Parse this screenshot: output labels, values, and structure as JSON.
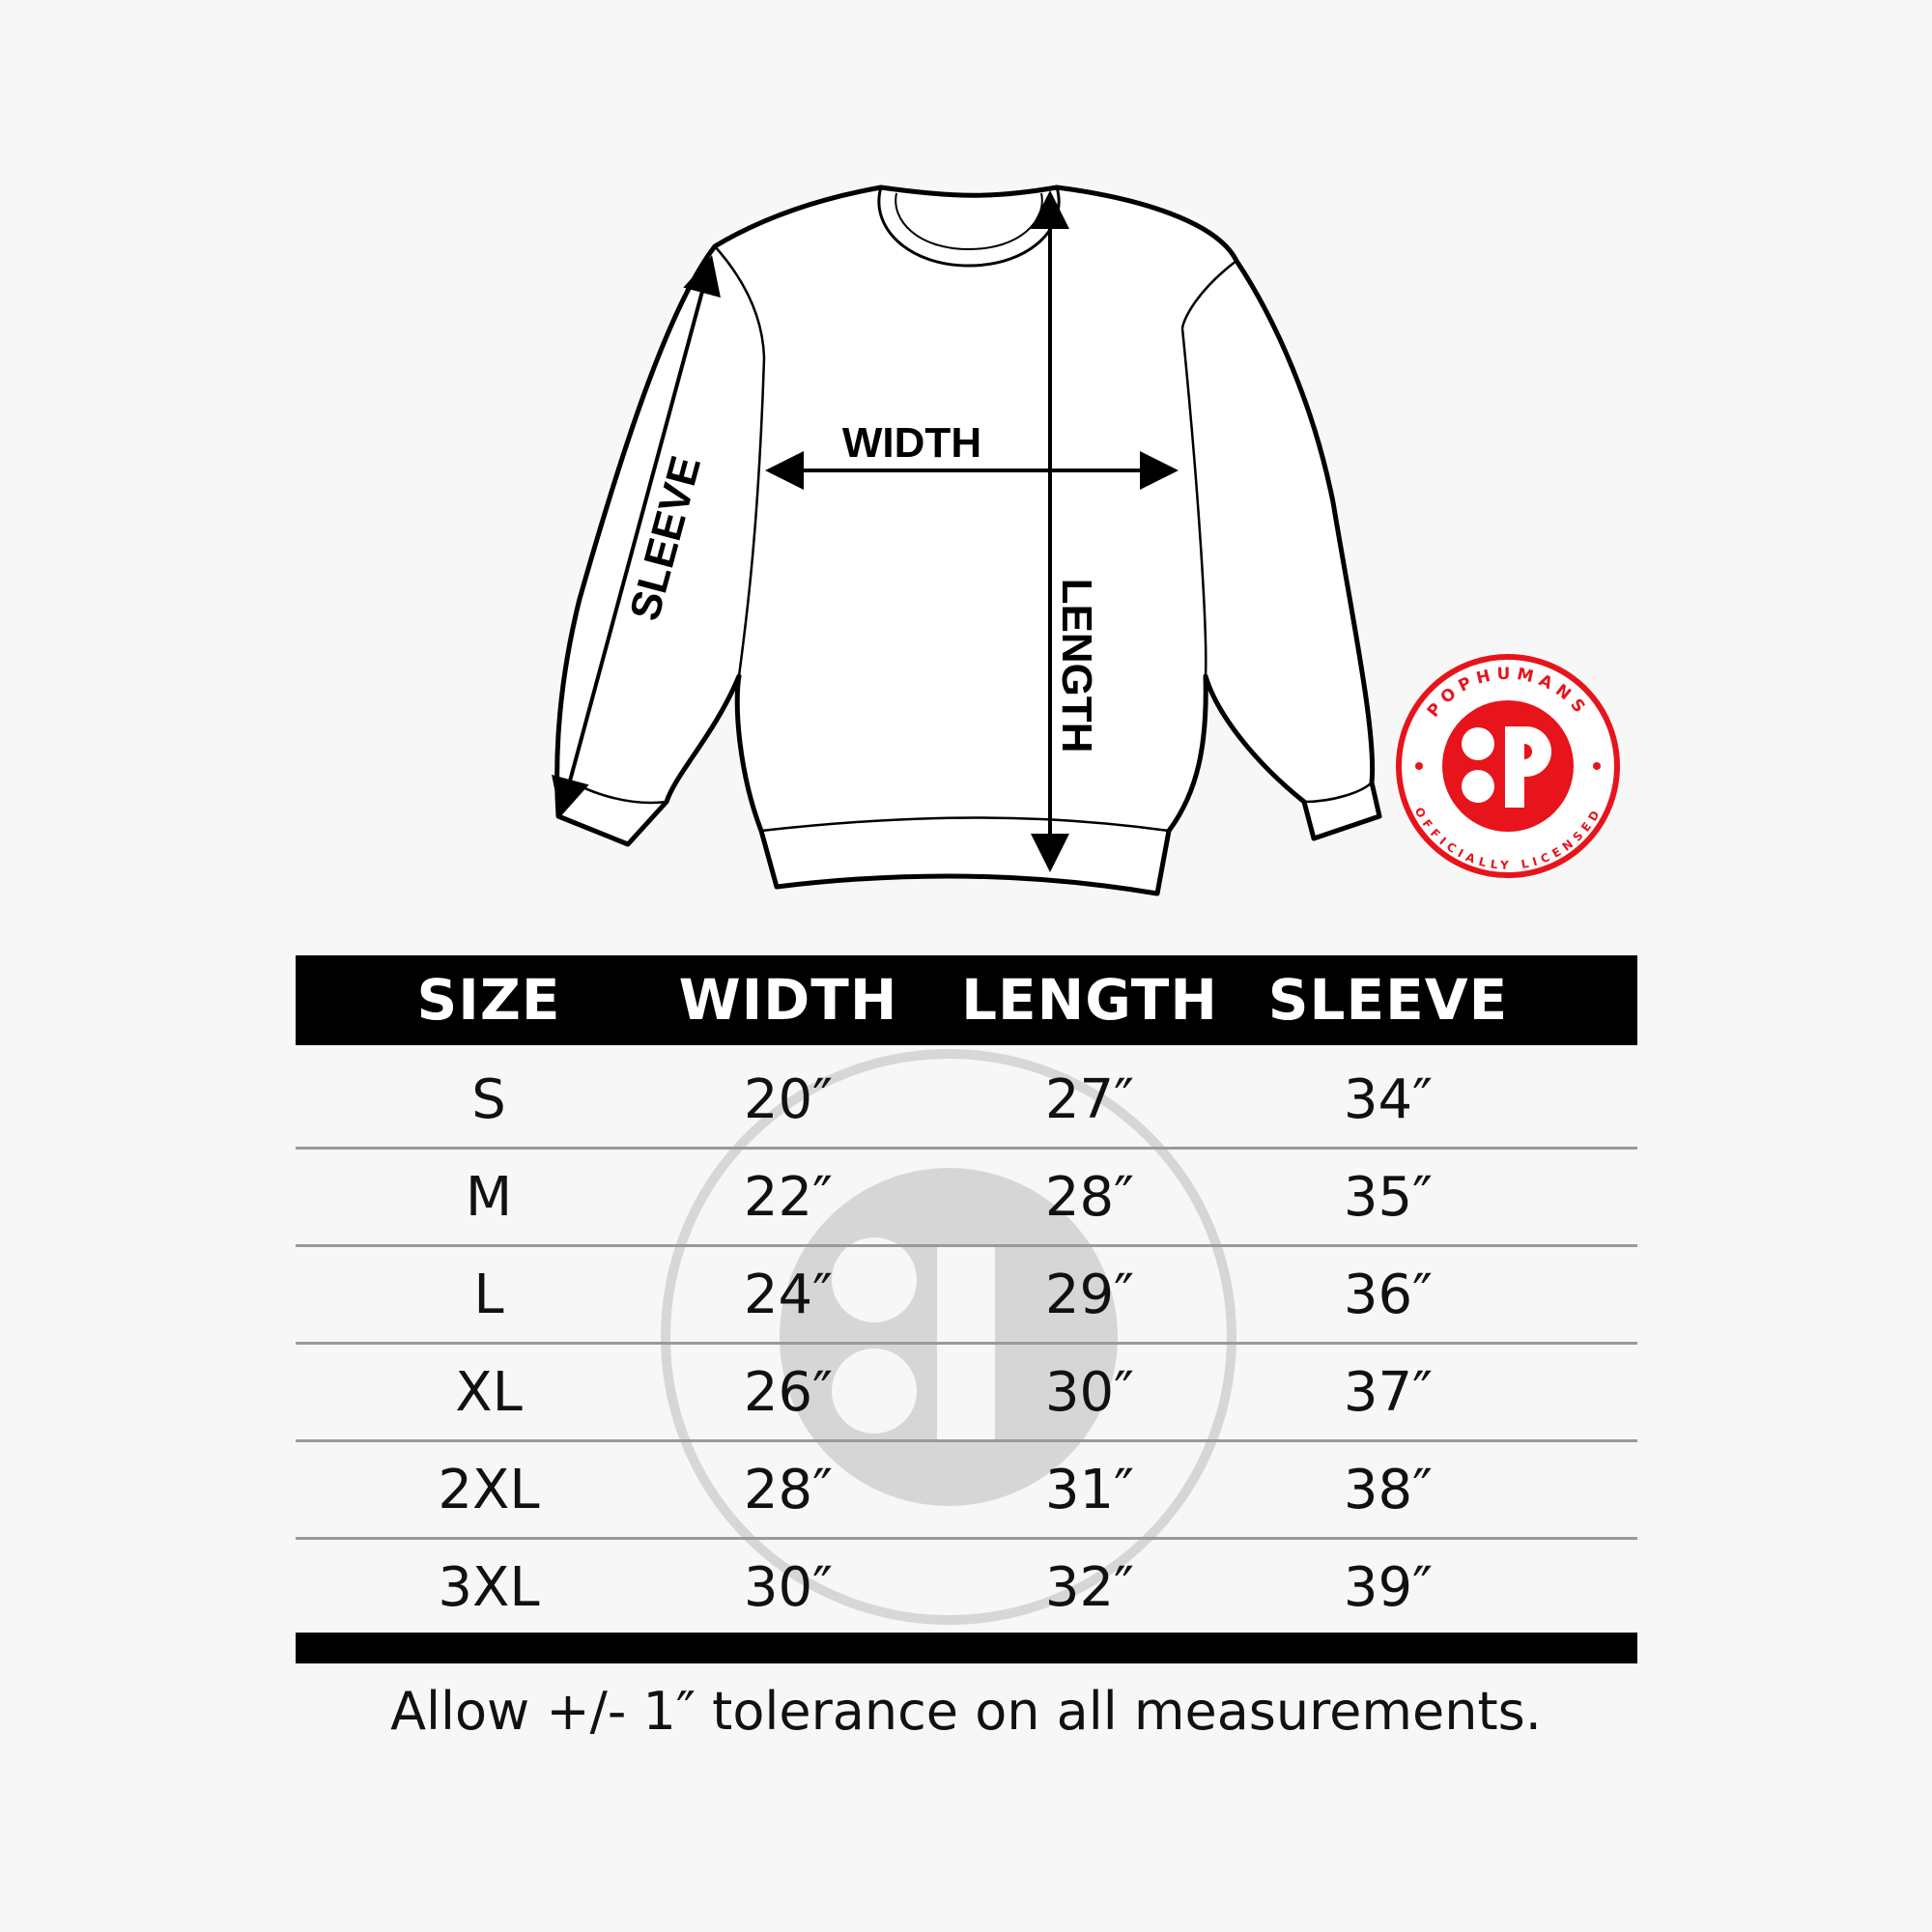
{
  "diagram": {
    "labels": {
      "width": "WIDTH",
      "length": "LENGTH",
      "sleeve": "SLEEVE"
    }
  },
  "logo": {
    "top_text": "POPHUMANS",
    "bottom_text": "OFFICIALLY LICENSED",
    "color": "#e8141b"
  },
  "table": {
    "headers": [
      "SIZE",
      "WIDTH",
      "LENGTH",
      "SLEEVE"
    ],
    "rows": [
      [
        "S",
        "20″",
        "27″",
        "34″"
      ],
      [
        "M",
        "22″",
        "28″",
        "35″"
      ],
      [
        "L",
        "24″",
        "29″",
        "36″"
      ],
      [
        "XL",
        "26″",
        "30″",
        "37″"
      ],
      [
        "2XL",
        "28″",
        "31″",
        "38″"
      ],
      [
        "3XL",
        "30″",
        "32″",
        "39″"
      ]
    ]
  },
  "footer": {
    "note": "Allow +/- 1″ tolerance on all measurements."
  }
}
